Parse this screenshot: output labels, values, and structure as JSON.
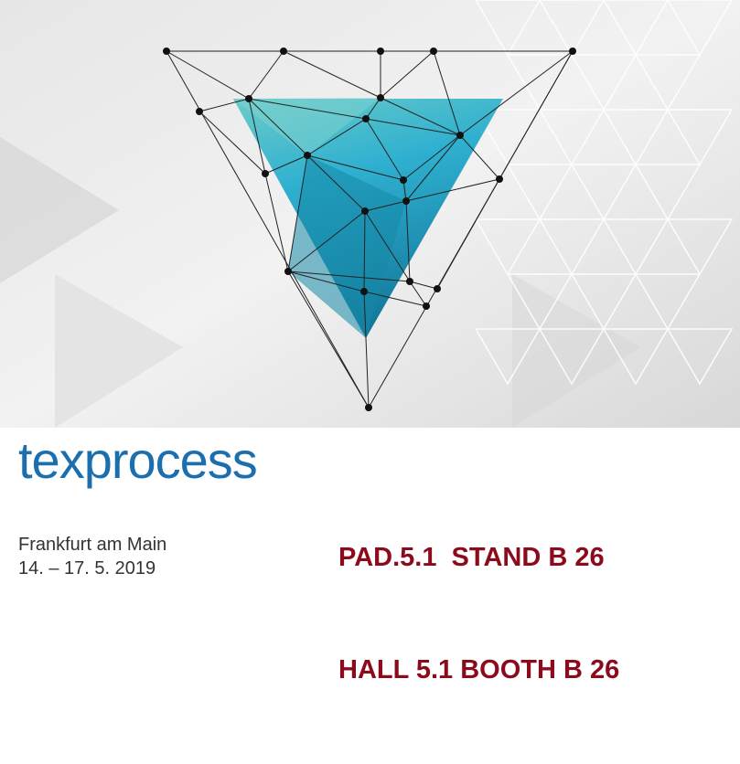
{
  "brand": {
    "logo_text": "texprocess",
    "location": "Frankfurt am Main",
    "dates": "14. – 17. 5. 2019",
    "color": "#1b6fae"
  },
  "booth": {
    "line1": "PAD.5.1  STAND B 26",
    "line2": "HALL 5.1 BOOTH B 26",
    "color": "#8b0a1c"
  },
  "graphic": {
    "icon": "network-triangle-graphic",
    "accent": "#2aa3c4"
  }
}
